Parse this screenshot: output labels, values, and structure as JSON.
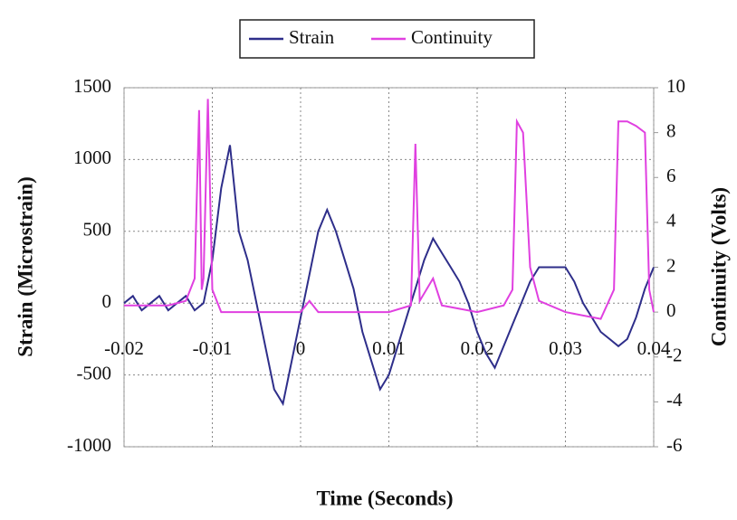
{
  "chart_data": {
    "type": "line",
    "xlabel": "Time (Seconds)",
    "ylabel": "Strain (Microstrain)",
    "y2label": "Continuity (Volts)",
    "xlim": [
      -0.02,
      0.04
    ],
    "xticks": [
      -0.02,
      -0.01,
      0,
      0.01,
      0.02,
      0.03,
      0.04
    ],
    "ylim": [
      -1000,
      1500
    ],
    "yticks": [
      1500,
      1000,
      500,
      0,
      -500,
      -1000
    ],
    "y2lim": [
      -6,
      10
    ],
    "y2ticks": [
      10,
      8,
      6,
      4,
      2,
      0,
      -2,
      -4,
      -6
    ],
    "grid": true,
    "legend": "top",
    "series": [
      {
        "name": "Strain",
        "color": "#2e2e8a",
        "x": [
          -0.02,
          -0.019,
          -0.018,
          -0.017,
          -0.016,
          -0.015,
          -0.014,
          -0.013,
          -0.012,
          -0.011,
          -0.01,
          -0.009,
          -0.008,
          -0.007,
          -0.006,
          -0.005,
          -0.004,
          -0.003,
          -0.002,
          -0.001,
          0,
          0.001,
          0.002,
          0.003,
          0.004,
          0.005,
          0.006,
          0.007,
          0.008,
          0.009,
          0.01,
          0.011,
          0.012,
          0.013,
          0.014,
          0.015,
          0.016,
          0.017,
          0.018,
          0.019,
          0.02,
          0.021,
          0.022,
          0.023,
          0.024,
          0.025,
          0.026,
          0.027,
          0.028,
          0.029,
          0.03,
          0.031,
          0.032,
          0.033,
          0.034,
          0.035,
          0.036,
          0.037,
          0.038,
          0.039,
          0.04
        ],
        "values": [
          0,
          50,
          -50,
          0,
          50,
          -50,
          0,
          50,
          -50,
          0,
          300,
          800,
          1100,
          500,
          300,
          0,
          -300,
          -600,
          -700,
          -400,
          -100,
          200,
          500,
          650,
          500,
          300,
          100,
          -200,
          -400,
          -600,
          -500,
          -300,
          -100,
          100,
          300,
          450,
          350,
          250,
          150,
          0,
          -200,
          -350,
          -450,
          -300,
          -150,
          0,
          150,
          250,
          250,
          250,
          250,
          150,
          0,
          -100,
          -200,
          -250,
          -300,
          -250,
          -100,
          100,
          250
        ]
      },
      {
        "name": "Continuity",
        "color": "#e040e0",
        "axis": "y2",
        "x": [
          -0.02,
          -0.015,
          -0.013,
          -0.012,
          -0.0115,
          -0.0112,
          -0.011,
          -0.0105,
          -0.01,
          -0.009,
          -0.005,
          0,
          0.001,
          0.002,
          0.005,
          0.01,
          0.0125,
          0.013,
          0.0135,
          0.015,
          0.016,
          0.02,
          0.023,
          0.024,
          0.0245,
          0.0252,
          0.026,
          0.027,
          0.03,
          0.034,
          0.0355,
          0.036,
          0.037,
          0.038,
          0.039,
          0.0395,
          0.04
        ],
        "values": [
          0.3,
          0.3,
          0.5,
          1.5,
          9,
          1,
          1.5,
          9.5,
          1,
          0,
          0,
          0,
          0.5,
          0,
          0,
          0,
          0.3,
          7.5,
          0.5,
          1.5,
          0.3,
          0,
          0.3,
          1,
          8.5,
          8,
          2,
          0.5,
          0,
          -0.3,
          1,
          8.5,
          8.5,
          8.3,
          8,
          1,
          0
        ]
      }
    ]
  }
}
